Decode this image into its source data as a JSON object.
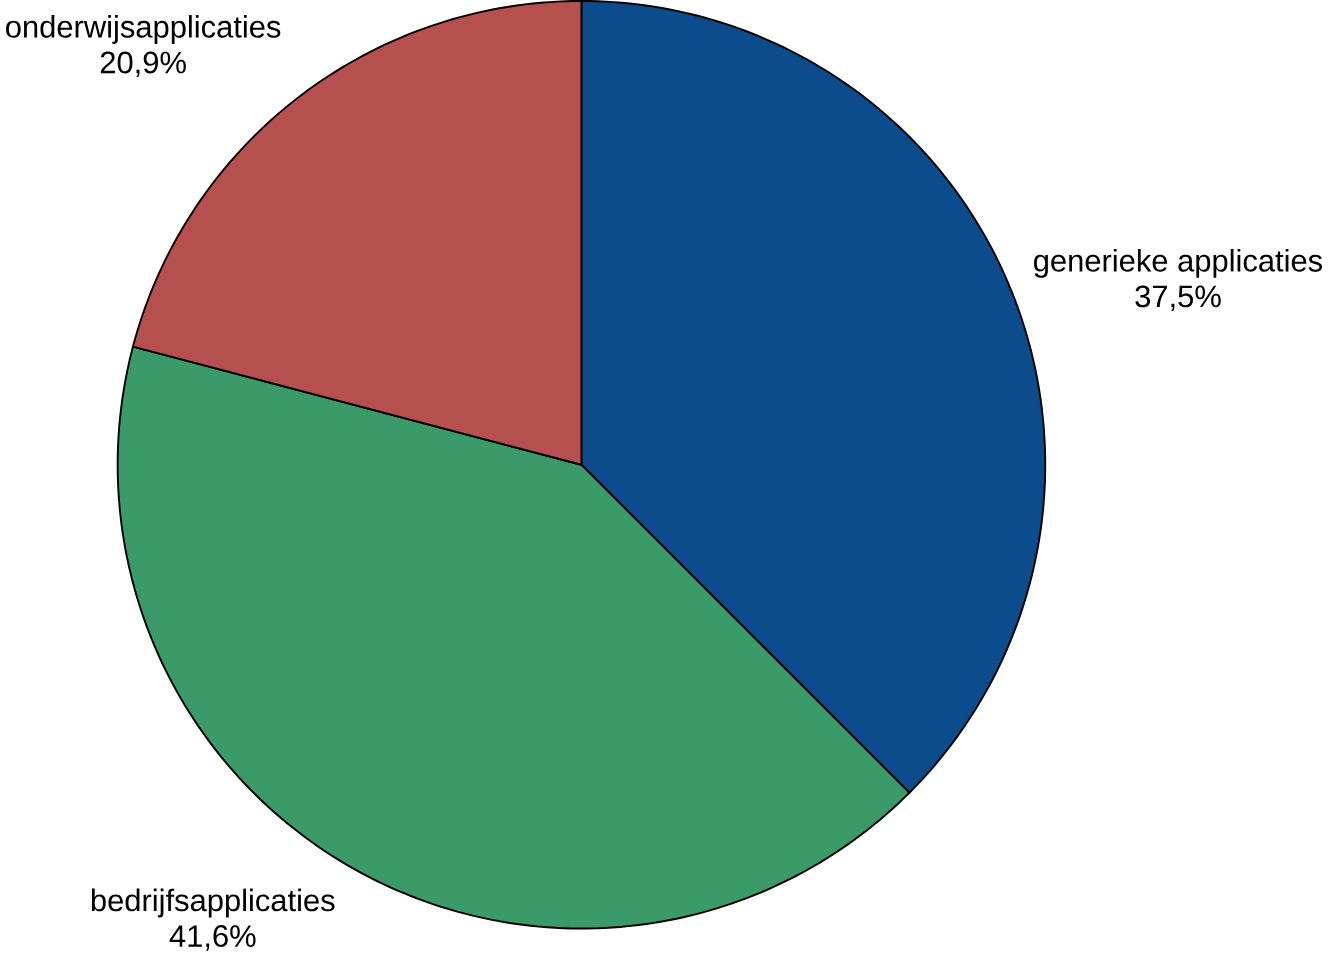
{
  "chart_data": {
    "type": "pie",
    "categories": [
      "generieke applicaties",
      "bedrijfsapplicaties",
      "onderwijsapplicaties"
    ],
    "values": [
      37.5,
      41.6,
      20.9
    ],
    "colors": [
      "#0d4c8c",
      "#3a9b68",
      "#b5504e"
    ],
    "value_labels": [
      "37,5%",
      "41,6%",
      "20,9%"
    ]
  }
}
